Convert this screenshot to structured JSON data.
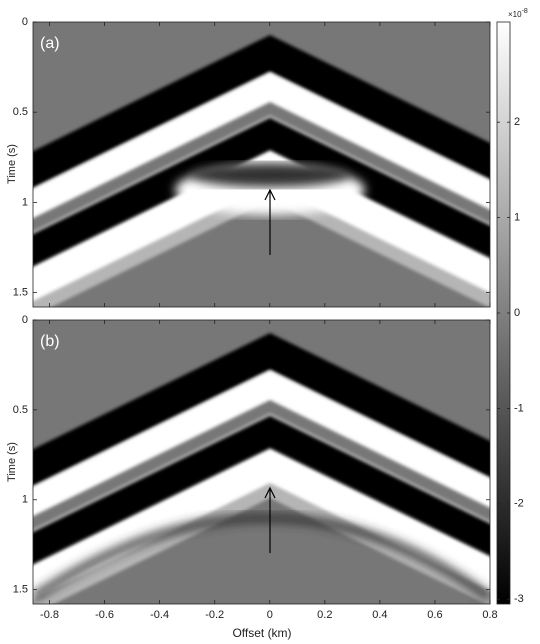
{
  "chart_data": [
    {
      "type": "image",
      "panel_label": "(a)",
      "ylabel": "Time (s)",
      "xlim": [
        -0.86,
        0.8
      ],
      "ylim": [
        0,
        1.58
      ],
      "yticks": [
        0,
        0.5,
        1,
        1.5
      ]
    },
    {
      "type": "image",
      "panel_label": "(b)",
      "ylabel": "Time (s)",
      "xlabel": "Offset (km)",
      "xlim": [
        -0.86,
        0.8
      ],
      "ylim": [
        0,
        1.58
      ],
      "yticks": [
        0,
        0.5,
        1,
        1.5
      ],
      "xticks": [
        -0.8,
        -0.6,
        -0.4,
        -0.2,
        0,
        0.2,
        0.4,
        0.6,
        0.8
      ]
    }
  ],
  "colorbar": {
    "clim": [
      -3.05,
      3.05
    ],
    "ticks": [
      -3,
      -2,
      -1,
      0,
      1,
      2
    ],
    "scale_base": "×10",
    "scale_exponent": "-8"
  }
}
